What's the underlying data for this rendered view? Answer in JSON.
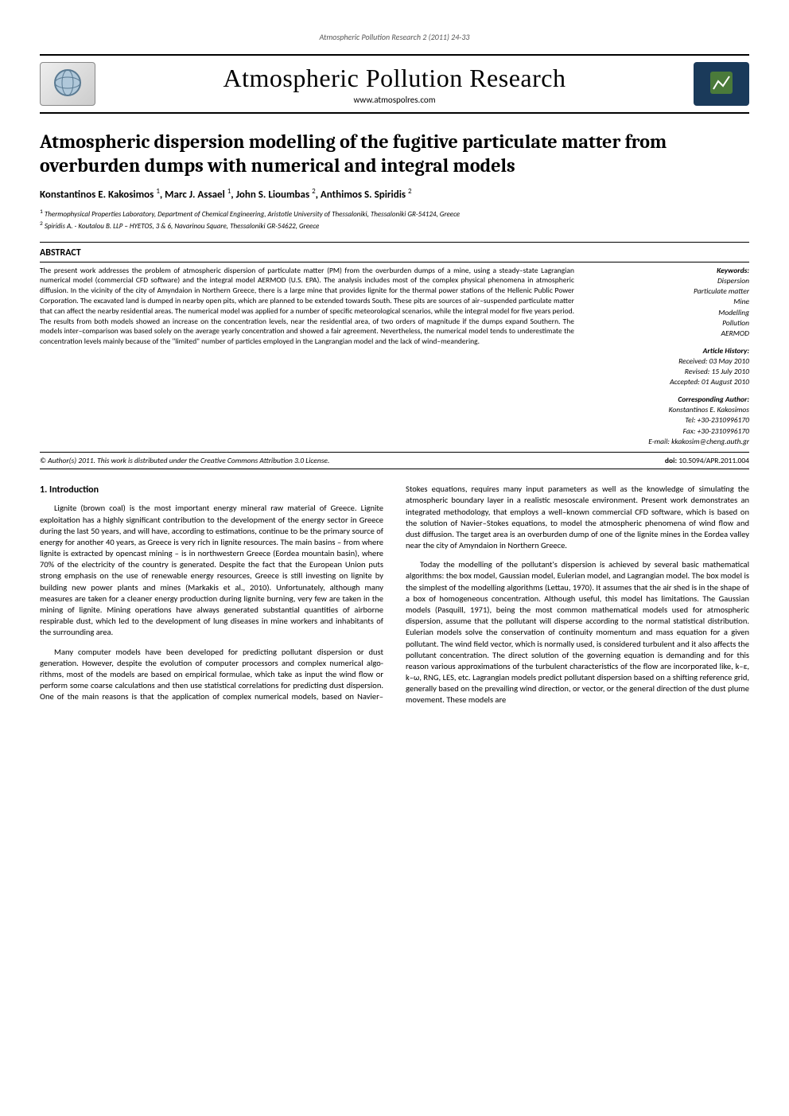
{
  "running_head": "Atmospheric Pollution Research 2 (2011) 24-33",
  "journal": {
    "title": "Atmospheric Pollution Research",
    "url": "www.atmospolres.com"
  },
  "article": {
    "title": "Atmospheric dispersion modelling of the fugitive particulate matter from overburden dumps with numerical and integral models",
    "authors_html": "Konstantinos E. Kakosimos <sup>1</sup>, Marc J. Assael <sup>1</sup>, John S. Lioumbas <sup>2</sup>, Anthimos S. Spiridis <sup>2</sup>",
    "affiliations": [
      "<sup>1</sup> Thermophysical Properties Laboratory, Department of Chemical Engineering, Aristotle University of Thessaloniki, Thessaloniki GR-54124, Greece",
      "<sup>2</sup> Spiridis A. - Koutalou B. LLP – HYETOS, 3 & 6, Navarinou Square, Thessaloniki GR-54622, Greece"
    ]
  },
  "abstract": {
    "heading": "ABSTRACT",
    "text": "The present work addresses the problem of atmospheric dispersion of particulate matter (PM) from the overburden dumps of a mine, using a steady–state Lagrangian numerical model (commercial CFD software) and the integral model AERMOD (U.S. EPA). The analysis includes most of the complex physical phenomena in atmospheric diffusion. In the vicinity of the city of Amyndaion in Northern Greece, there is a large mine that provides lignite for the thermal power stations of the Hellenic Public Power Corporation. The excavated land is dumped in nearby open pits, which are planned to be extended towards South. These pits are sources of air–suspended particulate matter that can affect the nearby residential areas. The numerical model was applied for a number of specific meteorological scenarios, while the integral model for five years period. The results from both models showed an increase on the concentration levels, near the residential area, of two orders of magnitude if the dumps expand Southern. The models inter–comparison was based solely on the average yearly concentration and showed a fair agreement. Nevertheless, the numerical model tends to underestimate the concentration levels mainly because of the \"limited\" number of particles employed in the Langrangian model and the lack of wind–meandering."
  },
  "keywords": {
    "heading": "Keywords:",
    "items": [
      "Dispersion",
      "Particulate matter",
      "Mine",
      "Modelling",
      "Pollution",
      "AERMOD"
    ]
  },
  "history": {
    "heading": "Article History:",
    "received": "Received: 03 May 2010",
    "revised": "Revised: 15 July 2010",
    "accepted": "Accepted: 01 August 2010"
  },
  "corresponding": {
    "heading": "Corresponding Author:",
    "name": "Konstantinos E. Kakosimos",
    "tel": "Tel: +30-2310996170",
    "fax": "Fax: +30-2310996170",
    "email": "E-mail: kkakosim@cheng.auth.gr"
  },
  "license": "© Author(s) 2011. This work is distributed under the Creative Commons Attribution 3.0 License.",
  "doi_label": "doi:",
  "doi": "10.5094/APR.2011.004",
  "intro": {
    "heading": "1. Introduction",
    "paras": [
      "Lignite (brown coal) is the most important energy mineral raw material of Greece. Lignite exploitation has a highly significant contribution to the development of the energy sector in Greece during the last 50 years, and will have, according to estimations, continue to be the primary source of energy for another 40 years, as Greece is very rich in lignite resources. The main basins – from where lignite is extracted by opencast mining – is in northwestern Greece (Eordea mountain basin), where 70% of the electricity of the country is generated. Despite the fact that the European Union puts strong emphasis on the use of renewable energy resources, Greece is still investing on lignite by building new power plants and mines (Markakis et al., 2010). Unfortunately, although many measures are taken for a cleaner energy production during lignite burning, very few are taken in the mining of lignite. Mining operations have always generated substantial quantities of airborne respirable dust, which led to the development of lung diseases in mine workers and inhabitants of the surrounding area.",
      "Many computer models have been developed for predicting pollutant dispersion or dust generation. However, despite the evolution of computer processors and complex numerical algo-rithms, most of the models are based on empirical formulae, which take as input the wind flow or perform some coarse calculations and then use statistical correlations for predicting dust dispersion. One of the main reasons is that the application of complex numerical models, based on Navier–Stokes equations, requires many input parameters as well as the knowledge of simulating the atmospheric boundary layer in a realistic mesoscale environment. Present work demonstrates an integrated methodology, that employs a well–known commercial CFD software, which is based on the solution of Navier–Stokes equations, to model the atmospheric phenomena of wind flow and dust diffusion. The target area is an overburden dump of one of the lignite mines in the Eordea valley near the city of Amyndaion in Northern Greece.",
      "Today the modelling of the pollutant's dispersion is achieved by several basic mathematical algorithms: the box model, Gaussian model, Eulerian model, and Lagrangian model. The box model is the simplest of the modelling algorithms (Lettau, 1970). It assumes that the air shed is in the shape of a box of homogeneous concentration. Although useful, this model has limitations. The Gaussian models (Pasquill, 1971), being the most common mathematical models used for atmospheric dispersion, assume that the pollutant will disperse according to the normal statistical distribution. Eulerian models solve the conservation of continuity momentum and mass equation for a given pollutant. The wind field vector, which is normally used, is considered turbulent and it also affects the pollutant concentration. The direct solution of the governing equation is demanding and for this reason various approximations of the turbulent characteristics of the flow are incorporated like, k–ε, k–ω, RNG, LES, etc. Lagrangian models predict pollutant dispersion based on a shifting reference grid, generally based on the prevailing wind direction, or vector, or the general direction of the dust plume movement. These models are"
    ]
  },
  "colors": {
    "rule": "#000000",
    "logo_right_bg": "#1a3a5a"
  }
}
